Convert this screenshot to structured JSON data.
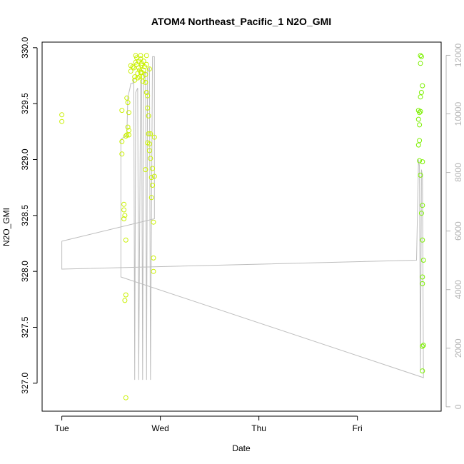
{
  "chart_data": {
    "type": "scatter",
    "title": "ATOM4 Northeast_Pacific_1 N2O_GMI",
    "xlabel": "Date",
    "ylabel": "N2O_GMI",
    "x_ticks": [
      "Tue",
      "Wed",
      "Thu",
      "Fri"
    ],
    "xlim_days": [
      -0.2,
      3.85
    ],
    "ylim": [
      326.75,
      330.05
    ],
    "y_ticks": [
      327.0,
      327.5,
      328.0,
      328.5,
      329.0,
      329.5,
      330.0
    ],
    "y2_ticks": [
      0,
      2000,
      4000,
      6000,
      8000,
      10000,
      12000
    ],
    "y2_range": [
      -150,
      12450
    ],
    "point_color_low": "#c9f000",
    "point_color_high": "#7cf000",
    "line_color": "#bdbdbd",
    "axis_color": "#000000",
    "right_axis_color": "#b3b3b3",
    "series": [
      {
        "points": [
          [
            0.0,
            329.4
          ],
          [
            0.0,
            329.34
          ],
          [
            0.61,
            329.44
          ],
          [
            0.61,
            329.16
          ],
          [
            0.61,
            329.05
          ],
          [
            0.63,
            328.6
          ],
          [
            0.63,
            328.55
          ],
          [
            0.64,
            328.5
          ],
          [
            0.63,
            328.47
          ],
          [
            0.65,
            329.21
          ],
          [
            0.66,
            329.22
          ],
          [
            0.66,
            329.55
          ],
          [
            0.67,
            329.51
          ],
          [
            0.67,
            329.29
          ],
          [
            0.68,
            329.26
          ],
          [
            0.68,
            329.22
          ],
          [
            0.68,
            329.42
          ],
          [
            0.65,
            328.28
          ],
          [
            0.64,
            327.74
          ],
          [
            0.65,
            327.79
          ],
          [
            0.65,
            326.87
          ],
          [
            0.7,
            329.84
          ],
          [
            0.7,
            329.79
          ],
          [
            0.72,
            329.83
          ],
          [
            0.73,
            329.82
          ],
          [
            0.74,
            329.74
          ],
          [
            0.74,
            329.71
          ],
          [
            0.75,
            329.87
          ],
          [
            0.75,
            329.93
          ],
          [
            0.76,
            329.91
          ],
          [
            0.76,
            329.85
          ],
          [
            0.77,
            329.77
          ],
          [
            0.77,
            329.73
          ],
          [
            0.78,
            329.82
          ],
          [
            0.78,
            329.88
          ],
          [
            0.79,
            329.8
          ],
          [
            0.79,
            329.74
          ],
          [
            0.8,
            329.9
          ],
          [
            0.8,
            329.93
          ],
          [
            0.81,
            329.86
          ],
          [
            0.81,
            329.78
          ],
          [
            0.82,
            329.7
          ],
          [
            0.82,
            329.74
          ],
          [
            0.83,
            329.8
          ],
          [
            0.83,
            329.88
          ],
          [
            0.84,
            329.83
          ],
          [
            0.85,
            329.76
          ],
          [
            0.85,
            329.69
          ],
          [
            0.86,
            329.93
          ],
          [
            0.86,
            329.6
          ],
          [
            0.87,
            329.57
          ],
          [
            0.87,
            329.46
          ],
          [
            0.88,
            329.39
          ],
          [
            0.88,
            329.23
          ],
          [
            0.89,
            329.14
          ],
          [
            0.89,
            329.08
          ],
          [
            0.9,
            329.23
          ],
          [
            0.9,
            329.01
          ],
          [
            0.91,
            328.84
          ],
          [
            0.91,
            328.66
          ],
          [
            0.92,
            328.92
          ],
          [
            0.92,
            328.77
          ],
          [
            0.93,
            328.44
          ],
          [
            0.93,
            328.12
          ],
          [
            0.94,
            328.85
          ],
          [
            0.94,
            329.2
          ],
          [
            0.93,
            328.0
          ],
          [
            0.85,
            328.91
          ],
          [
            0.87,
            329.15
          ],
          [
            0.8,
            329.78
          ],
          [
            0.81,
            329.84
          ],
          [
            0.86,
            329.85
          ],
          [
            0.89,
            329.81
          ],
          [
            3.62,
            329.44
          ],
          [
            3.63,
            329.42
          ],
          [
            3.64,
            329.43
          ],
          [
            3.62,
            329.36
          ],
          [
            3.63,
            329.31
          ],
          [
            3.64,
            329.56
          ],
          [
            3.65,
            329.6
          ],
          [
            3.66,
            329.66
          ],
          [
            3.64,
            329.93
          ],
          [
            3.65,
            329.92
          ],
          [
            3.64,
            329.86
          ],
          [
            3.63,
            329.17
          ],
          [
            3.62,
            329.13
          ],
          [
            3.63,
            328.99
          ],
          [
            3.64,
            328.86
          ],
          [
            3.66,
            328.98
          ],
          [
            3.66,
            328.59
          ],
          [
            3.65,
            328.52
          ],
          [
            3.66,
            328.28
          ],
          [
            3.67,
            328.1
          ],
          [
            3.66,
            327.95
          ],
          [
            3.66,
            327.89
          ],
          [
            3.67,
            327.34
          ],
          [
            3.66,
            327.33
          ],
          [
            3.66,
            327.11
          ]
        ],
        "line": [
          [
            0.0,
            328.27
          ],
          [
            0.0,
            328.02
          ],
          [
            3.6,
            328.1
          ],
          [
            3.62,
            329.0
          ],
          [
            3.63,
            328.94
          ],
          [
            3.64,
            327.1
          ],
          [
            3.65,
            328.91
          ],
          [
            3.66,
            328.85
          ],
          [
            3.67,
            327.05
          ],
          [
            0.6,
            327.95
          ],
          [
            0.6,
            329.18
          ],
          [
            0.66,
            329.22
          ],
          [
            0.67,
            329.56
          ],
          [
            0.69,
            329.63
          ],
          [
            0.7,
            329.68
          ],
          [
            0.72,
            329.68
          ],
          [
            0.73,
            329.72
          ],
          [
            0.74,
            327.03
          ],
          [
            0.75,
            329.6
          ],
          [
            0.77,
            329.64
          ],
          [
            0.78,
            327.03
          ],
          [
            0.8,
            329.7
          ],
          [
            0.81,
            329.72
          ],
          [
            0.82,
            327.03
          ],
          [
            0.83,
            329.75
          ],
          [
            0.85,
            329.78
          ],
          [
            0.86,
            327.03
          ],
          [
            0.87,
            329.8
          ],
          [
            0.89,
            329.82
          ],
          [
            0.9,
            327.03
          ],
          [
            0.92,
            329.92
          ],
          [
            0.94,
            329.92
          ],
          [
            0.94,
            328.47
          ],
          [
            0.0,
            328.27
          ]
        ]
      }
    ]
  }
}
